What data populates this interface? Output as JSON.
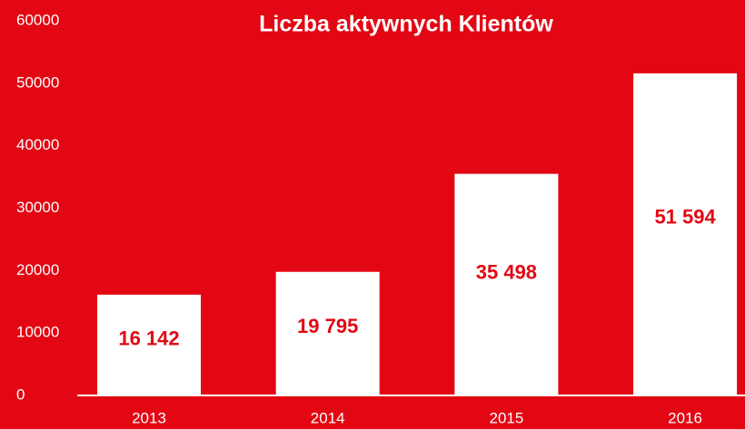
{
  "chart_data": {
    "type": "bar",
    "title": "Liczba aktywnych Klientów",
    "categories": [
      "2013",
      "2014",
      "2015",
      "2016"
    ],
    "values": [
      16142,
      19795,
      35498,
      51594
    ],
    "value_labels": [
      "16 142",
      "19 795",
      "35 498",
      "51 594"
    ],
    "color": "#ffffff",
    "ylim": [
      0,
      60000
    ],
    "yticks": [
      0,
      10000,
      20000,
      30000,
      40000,
      50000,
      60000
    ],
    "grid": false
  }
}
